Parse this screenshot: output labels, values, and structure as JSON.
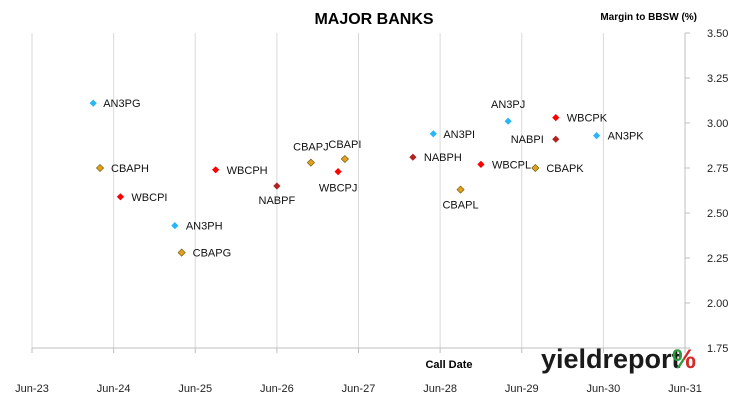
{
  "chart_data": {
    "type": "scatter",
    "title": "MAJOR BANKS",
    "ylabel": "Margin to BBSW (%)",
    "xlabel": "Call Date",
    "ylim": [
      1.75,
      3.5
    ],
    "y_ticks": [
      "1.75",
      "2.00",
      "2.25",
      "2.50",
      "2.75",
      "3.00",
      "3.25",
      "3.50"
    ],
    "x_range": [
      "2023-06",
      "2031-06"
    ],
    "x_ticks": [
      "Jun-23",
      "Jun-24",
      "Jun-25",
      "Jun-26",
      "Jun-27",
      "Jun-28",
      "Jun-29",
      "Jun-30",
      "Jun-31"
    ],
    "grid": "vertical",
    "series_colors": {
      "ANZ": "#29b6f6",
      "WBC": "#ff0000",
      "CBA": "#e0a020",
      "NAB": "#b22222"
    },
    "points": [
      {
        "label": "AN3PG",
        "bank": "ANZ",
        "x": "2024-03",
        "y": 3.11
      },
      {
        "label": "CBAPH",
        "bank": "CBA",
        "x": "2024-04",
        "y": 2.75
      },
      {
        "label": "WBCPI",
        "bank": "WBC",
        "x": "2024-07",
        "y": 2.59
      },
      {
        "label": "AN3PH",
        "bank": "ANZ",
        "x": "2025-03",
        "y": 2.43
      },
      {
        "label": "CBAPG",
        "bank": "CBA",
        "x": "2025-04",
        "y": 2.28
      },
      {
        "label": "WBCPH",
        "bank": "WBC",
        "x": "2025-09",
        "y": 2.74
      },
      {
        "label": "NABPF",
        "bank": "NAB",
        "x": "2026-06",
        "y": 2.65
      },
      {
        "label": "CBAPJ",
        "bank": "CBA",
        "x": "2026-11",
        "y": 2.78
      },
      {
        "label": "WBCPJ",
        "bank": "WBC",
        "x": "2027-03",
        "y": 2.73
      },
      {
        "label": "CBAPI",
        "bank": "CBA",
        "x": "2027-04",
        "y": 2.8
      },
      {
        "label": "NABPH",
        "bank": "NAB",
        "x": "2028-02",
        "y": 2.81
      },
      {
        "label": "AN3PI",
        "bank": "ANZ",
        "x": "2028-05",
        "y": 2.94
      },
      {
        "label": "CBAPL",
        "bank": "CBA",
        "x": "2028-09",
        "y": 2.63
      },
      {
        "label": "WBCPL",
        "bank": "WBC",
        "x": "2028-12",
        "y": 2.77
      },
      {
        "label": "AN3PJ",
        "bank": "ANZ",
        "x": "2029-04",
        "y": 3.01
      },
      {
        "label": "CBAPK",
        "bank": "CBA",
        "x": "2029-08",
        "y": 2.75
      },
      {
        "label": "NABPI",
        "bank": "NAB",
        "x": "2029-11",
        "y": 2.91
      },
      {
        "label": "WBCPK",
        "bank": "WBC",
        "x": "2029-11",
        "y": 3.03
      },
      {
        "label": "AN3PK",
        "bank": "ANZ",
        "x": "2030-05",
        "y": 2.93
      }
    ]
  },
  "brand": {
    "text": "yieldreport",
    "symbol": "%",
    "symbol_colors": [
      "#2e9a3e",
      "#d42a2a"
    ]
  }
}
